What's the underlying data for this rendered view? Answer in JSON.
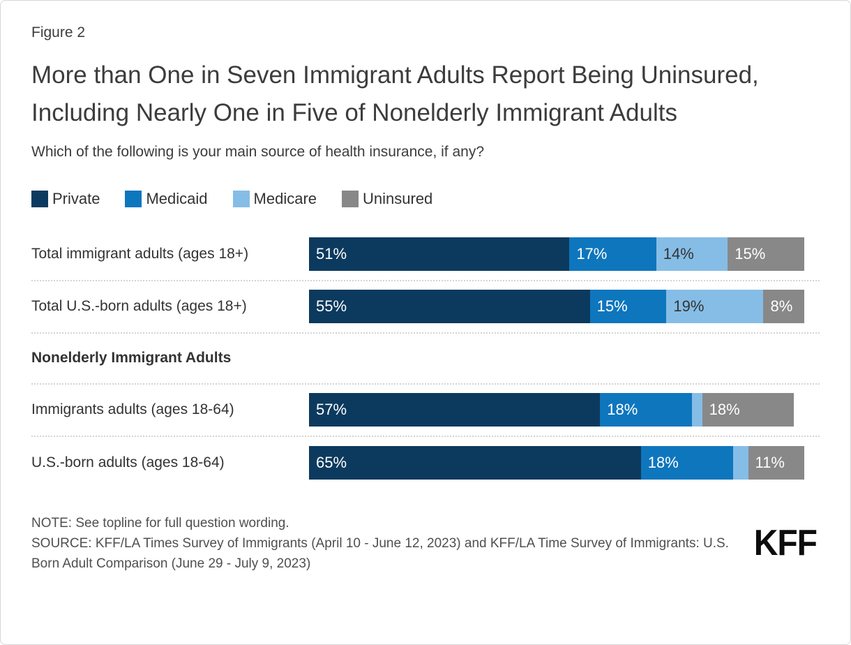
{
  "figure_label": "Figure 2",
  "title": "More than One in Seven Immigrant Adults Report Being Uninsured, Including Nearly One in Five of Nonelderly Immigrant Adults",
  "subtitle": "Which of the following is your main source of health insurance, if any?",
  "colors": {
    "private": "#0c3a5e",
    "medicaid": "#0e76bd",
    "medicare": "#86bde6",
    "uninsured": "#888888",
    "label_on_dark": "#ffffff",
    "label_on_light": "#333333"
  },
  "legend": [
    {
      "label": "Private",
      "color": "#0c3a5e"
    },
    {
      "label": "Medicaid",
      "color": "#0e76bd"
    },
    {
      "label": "Medicare",
      "color": "#86bde6"
    },
    {
      "label": "Uninsured",
      "color": "#888888"
    }
  ],
  "chart_data": {
    "type": "bar",
    "orientation": "horizontal_stacked",
    "units": "percent",
    "series_names": [
      "Private",
      "Medicaid",
      "Medicare",
      "Uninsured"
    ],
    "xlim": [
      0,
      100
    ],
    "grid": false,
    "legend_position": "top",
    "rows": [
      {
        "category": "Total immigrant adults (ages 18+)",
        "values": [
          51,
          17,
          14,
          15
        ],
        "labels": [
          "51%",
          "17%",
          "14%",
          "15%"
        ]
      },
      {
        "category": "Total U.S.-born adults (ages 18+)",
        "values": [
          55,
          15,
          19,
          8
        ],
        "labels": [
          "55%",
          "15%",
          "19%",
          "8%"
        ]
      },
      {
        "section": "Nonelderly Immigrant Adults"
      },
      {
        "category": "Immigrants adults (ages 18-64)",
        "values": [
          57,
          18,
          2,
          18
        ],
        "labels": [
          "57%",
          "18%",
          "",
          "18%"
        ]
      },
      {
        "category": "U.S.-born adults (ages 18-64)",
        "values": [
          65,
          18,
          3,
          11
        ],
        "labels": [
          "65%",
          "18%",
          "",
          "11%"
        ]
      }
    ]
  },
  "note": "NOTE: See topline for full question wording.",
  "source": "SOURCE: KFF/LA Times Survey of Immigrants (April 10 - June 12, 2023) and KFF/LA Time Survey of Immigrants: U.S. Born Adult Comparison (June 29 - July 9, 2023)",
  "logo_text": "KFF"
}
